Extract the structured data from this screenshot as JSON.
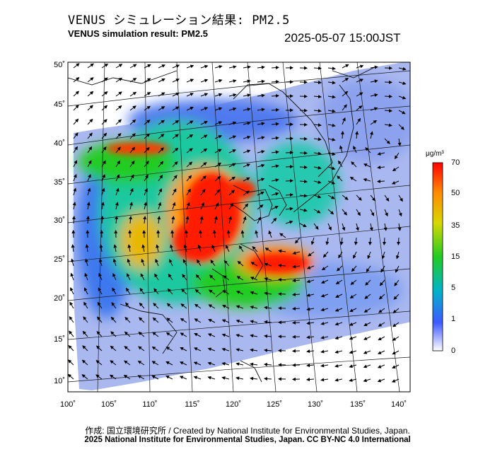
{
  "header": {
    "title_jp": "VENUS シミュレーション結果: PM2.5",
    "title_en": "VENUS simulation result: PM2.5",
    "timestamp": "2025-05-07 15:00JST"
  },
  "map": {
    "lat_labels": [
      "50˚",
      "45˚",
      "40˚",
      "35˚",
      "30˚",
      "25˚",
      "20˚",
      "15˚",
      "10˚"
    ],
    "lon_labels": [
      "100˚",
      "105˚",
      "110˚",
      "115˚",
      "120˚",
      "125˚",
      "130˚",
      "135˚",
      "140˚"
    ]
  },
  "colorbar": {
    "unit": "μg/m³",
    "ticks": [
      "70",
      "50",
      "35",
      "15",
      "5",
      "1",
      "0"
    ],
    "colors": [
      "#ff0000",
      "#ff8c00",
      "#d8d800",
      "#22cc22",
      "#00b4c8",
      "#3c5aff",
      "#ffffff"
    ]
  },
  "footer": {
    "credit_line1": "作成: 国立環境研究所 / Created by National Institute for Environmental Studies, Japan.",
    "credit_line2": "2025 National Institute for Environmental Studies, Japan. CC BY-NC 4.0 International"
  }
}
